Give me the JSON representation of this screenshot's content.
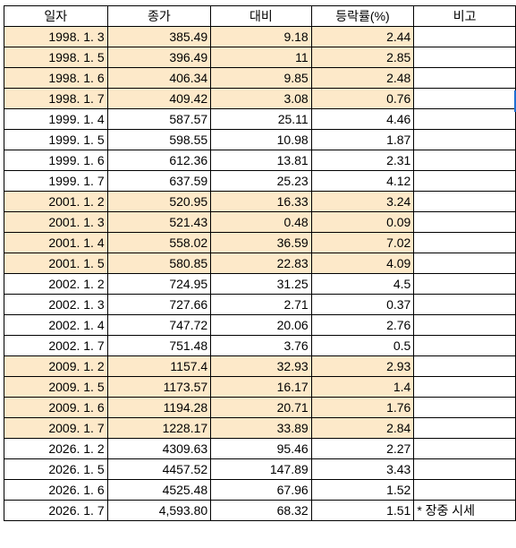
{
  "headers": [
    "일자",
    "종가",
    "대비",
    "등락률(%)",
    "비고"
  ],
  "highlight_color": "#fde9c9",
  "rows": [
    {
      "date": "1998. 1. 3",
      "close": "385.49",
      "change": "9.18",
      "rate": "2.44",
      "note": "",
      "highlight": true
    },
    {
      "date": "1998. 1. 5",
      "close": "396.49",
      "change": "11",
      "rate": "2.85",
      "note": "",
      "highlight": true
    },
    {
      "date": "1998. 1. 6",
      "close": "406.34",
      "change": "9.85",
      "rate": "2.48",
      "note": "",
      "highlight": true
    },
    {
      "date": "1998. 1. 7",
      "close": "409.42",
      "change": "3.08",
      "rate": "0.76",
      "note": "",
      "highlight": true
    },
    {
      "date": "1999. 1. 4",
      "close": "587.57",
      "change": "25.11",
      "rate": "4.46",
      "note": "",
      "highlight": false
    },
    {
      "date": "1999. 1. 5",
      "close": "598.55",
      "change": "10.98",
      "rate": "1.87",
      "note": "",
      "highlight": false
    },
    {
      "date": "1999. 1. 6",
      "close": "612.36",
      "change": "13.81",
      "rate": "2.31",
      "note": "",
      "highlight": false
    },
    {
      "date": "1999. 1. 7",
      "close": "637.59",
      "change": "25.23",
      "rate": "4.12",
      "note": "",
      "highlight": false
    },
    {
      "date": "2001. 1. 2",
      "close": "520.95",
      "change": "16.33",
      "rate": "3.24",
      "note": "",
      "highlight": true
    },
    {
      "date": "2001. 1. 3",
      "close": "521.43",
      "change": "0.48",
      "rate": "0.09",
      "note": "",
      "highlight": true
    },
    {
      "date": "2001. 1. 4",
      "close": "558.02",
      "change": "36.59",
      "rate": "7.02",
      "note": "",
      "highlight": true
    },
    {
      "date": "2001. 1. 5",
      "close": "580.85",
      "change": "22.83",
      "rate": "4.09",
      "note": "",
      "highlight": true
    },
    {
      "date": "2002. 1. 2",
      "close": "724.95",
      "change": "31.25",
      "rate": "4.5",
      "note": "",
      "highlight": false
    },
    {
      "date": "2002. 1. 3",
      "close": "727.66",
      "change": "2.71",
      "rate": "0.37",
      "note": "",
      "highlight": false
    },
    {
      "date": "2002. 1. 4",
      "close": "747.72",
      "change": "20.06",
      "rate": "2.76",
      "note": "",
      "highlight": false
    },
    {
      "date": "2002. 1. 7",
      "close": "751.48",
      "change": "3.76",
      "rate": "0.5",
      "note": "",
      "highlight": false
    },
    {
      "date": "2009. 1. 2",
      "close": "1157.4",
      "change": "32.93",
      "rate": "2.93",
      "note": "",
      "highlight": true
    },
    {
      "date": "2009. 1. 5",
      "close": "1173.57",
      "change": "16.17",
      "rate": "1.4",
      "note": "",
      "highlight": true
    },
    {
      "date": "2009. 1. 6",
      "close": "1194.28",
      "change": "20.71",
      "rate": "1.76",
      "note": "",
      "highlight": true
    },
    {
      "date": "2009. 1. 7",
      "close": "1228.17",
      "change": "33.89",
      "rate": "2.84",
      "note": "",
      "highlight": true
    },
    {
      "date": "2026. 1. 2",
      "close": "4309.63",
      "change": "95.46",
      "rate": "2.27",
      "note": "",
      "highlight": false
    },
    {
      "date": "2026. 1. 5",
      "close": "4457.52",
      "change": "147.89",
      "rate": "3.43",
      "note": "",
      "highlight": false
    },
    {
      "date": "2026. 1. 6",
      "close": "4525.48",
      "change": "67.96",
      "rate": "1.52",
      "note": "",
      "highlight": false
    },
    {
      "date": "2026. 1. 7",
      "close": "4,593.80",
      "change": "68.32",
      "rate": "1.51",
      "note": "* 장중 시세",
      "highlight": false
    }
  ]
}
